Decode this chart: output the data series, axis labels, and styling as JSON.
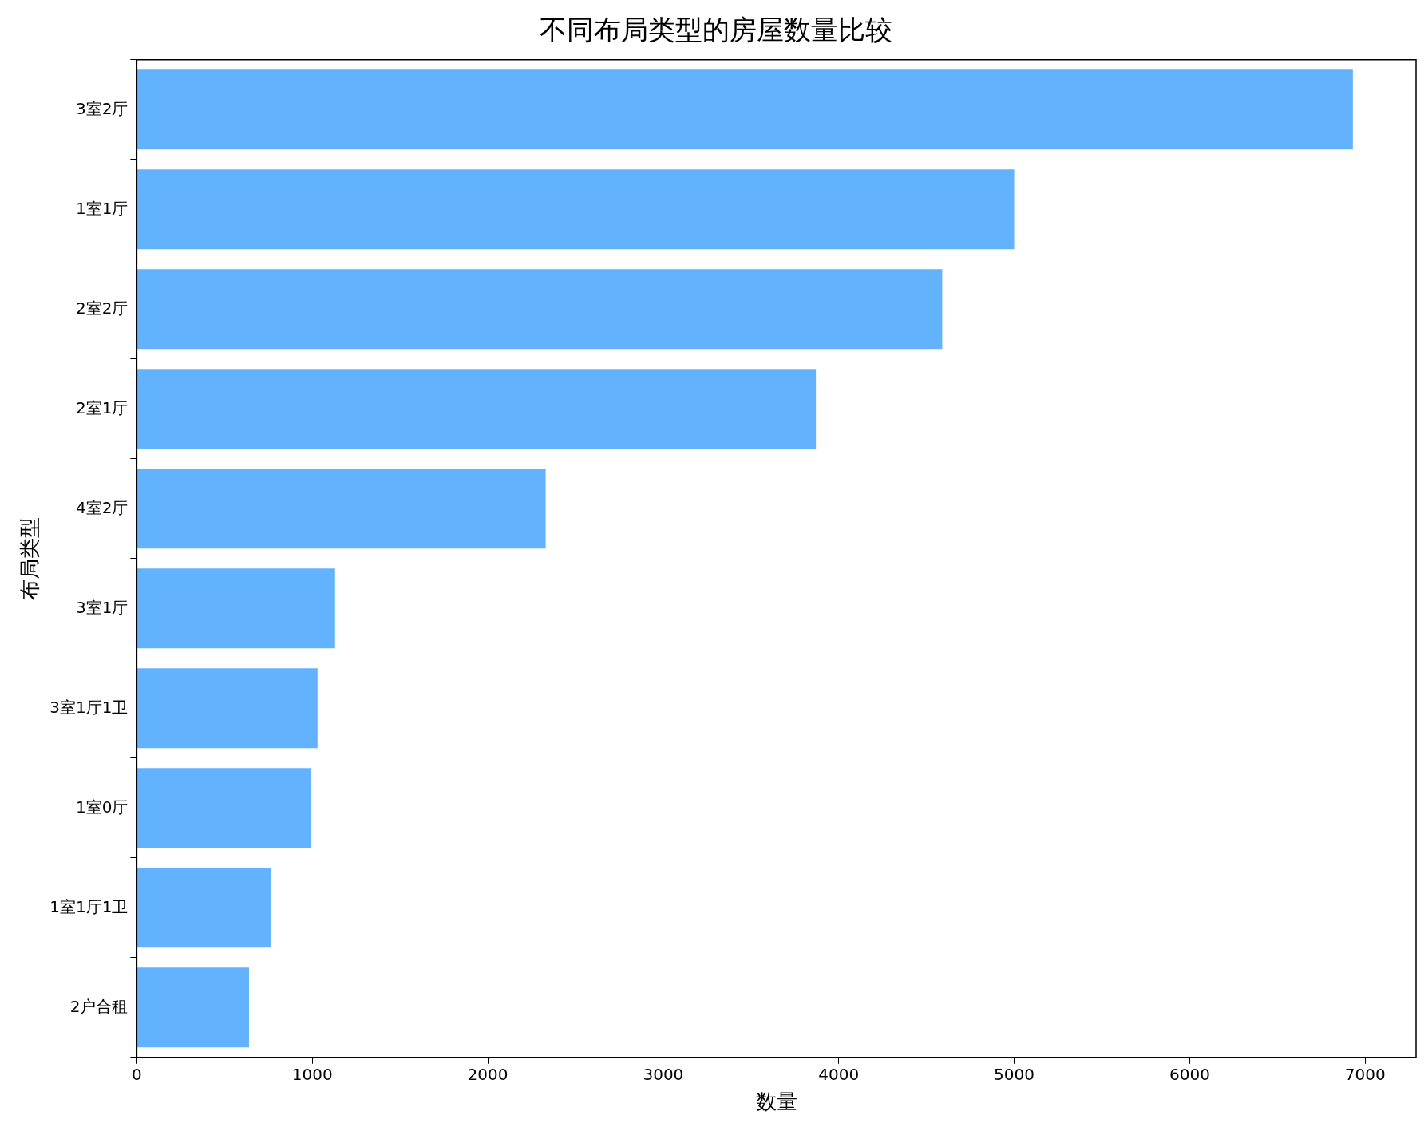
{
  "chart_data": {
    "type": "bar",
    "orientation": "horizontal",
    "title": "不同布局类型的房屋数量比较",
    "xlabel": "数量",
    "ylabel": "布局类型",
    "categories": [
      "3室2厅",
      "1室1厅",
      "2室2厅",
      "2室1厅",
      "4室2厅",
      "3室1厅",
      "3室1厅1卫",
      "1室0厅",
      "1室1厅1卫",
      "2户合租"
    ],
    "values": [
      6930,
      5000,
      4590,
      3870,
      2330,
      1130,
      1030,
      990,
      765,
      640
    ],
    "color": "#63b2fe",
    "xlim": [
      0,
      7290
    ],
    "xticks": [
      0,
      1000,
      2000,
      3000,
      4000,
      5000,
      6000,
      7000
    ],
    "grid": false,
    "legend": false
  }
}
